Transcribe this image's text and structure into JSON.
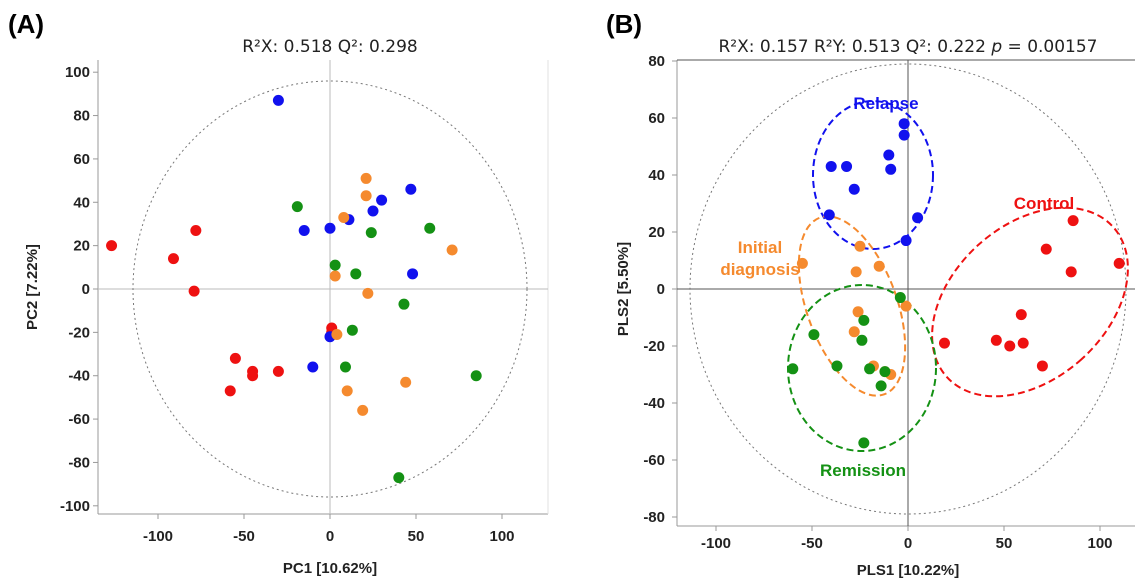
{
  "colors": {
    "red": "#ee1111",
    "blue": "#1111ee",
    "orange": "#f58a2e",
    "green": "#149114"
  },
  "chart_data": [
    {
      "panel": "(A)",
      "type": "scatter",
      "title": "R²X: 0.518 Q²: 0.298",
      "xlabel": "PC1 [10.62%]",
      "ylabel": "PC2 [7.22%]",
      "xlim": [
        -140,
        130
      ],
      "ylim": [
        -108,
        108
      ],
      "xticks": [
        -100,
        -50,
        0,
        50,
        100
      ],
      "yticks": [
        -100,
        -80,
        -60,
        -40,
        -20,
        0,
        20,
        40,
        60,
        80,
        100
      ],
      "series": [
        {
          "color": "red",
          "points": [
            [
              -127,
              20
            ],
            [
              -91,
              14
            ],
            [
              -78,
              27
            ],
            [
              -79,
              -1
            ],
            [
              -55,
              -32
            ],
            [
              -45,
              -38
            ],
            [
              -45,
              -40
            ],
            [
              -58,
              -47
            ],
            [
              -30,
              -38
            ],
            [
              1,
              -18
            ],
            [
              1,
              -20
            ]
          ]
        },
        {
          "color": "blue",
          "points": [
            [
              -30,
              87
            ],
            [
              -15,
              27
            ],
            [
              0,
              28
            ],
            [
              11,
              32
            ],
            [
              25,
              36
            ],
            [
              30,
              41
            ],
            [
              47,
              46
            ],
            [
              -10,
              -36
            ],
            [
              0,
              -22
            ],
            [
              48,
              7
            ]
          ]
        },
        {
          "color": "orange",
          "points": [
            [
              21,
              51
            ],
            [
              21,
              43
            ],
            [
              8,
              33
            ],
            [
              3,
              6
            ],
            [
              22,
              -2
            ],
            [
              4,
              -21
            ],
            [
              10,
              -47
            ],
            [
              19,
              -56
            ],
            [
              44,
              -43
            ],
            [
              71,
              18
            ]
          ]
        },
        {
          "color": "green",
          "points": [
            [
              -19,
              38
            ],
            [
              24,
              26
            ],
            [
              58,
              28
            ],
            [
              3,
              11
            ],
            [
              15,
              7
            ],
            [
              43,
              -7
            ],
            [
              13,
              -19
            ],
            [
              9,
              -36
            ],
            [
              85,
              -40
            ],
            [
              40,
              -87
            ]
          ]
        }
      ]
    },
    {
      "panel": "(B)",
      "type": "scatter",
      "title": "R²X: 0.157 R²Y: 0.513 Q²: 0.222 p = 0.00157",
      "title_parts": [
        "R²X: 0.157 R²Y: 0.513 Q²: 0.222 ",
        "p",
        " = 0.00157"
      ],
      "xlabel": "PLS1 [10.22%]",
      "ylabel": "PLS2 [5.50%]",
      "xlim": [
        -120,
        118
      ],
      "ylim": [
        -80,
        80
      ],
      "xticks": [
        -100,
        -50,
        0,
        50,
        100
      ],
      "yticks": [
        -80,
        -60,
        -40,
        -20,
        0,
        20,
        40,
        60,
        80
      ],
      "groups": [
        {
          "name": "Relapse",
          "color": "blue"
        },
        {
          "name": "Control",
          "color": "red"
        },
        {
          "name": "Initial diagnosis",
          "lines": [
            "Initial",
            "diagnosis"
          ],
          "color": "orange"
        },
        {
          "name": "Remission",
          "color": "green"
        }
      ],
      "series": [
        {
          "name": "Relapse",
          "color": "blue",
          "points": [
            [
              -2,
              58
            ],
            [
              -2,
              54
            ],
            [
              -10,
              47
            ],
            [
              -9,
              42
            ],
            [
              -40,
              43
            ],
            [
              -32,
              43
            ],
            [
              -28,
              35
            ],
            [
              -41,
              26
            ],
            [
              5,
              25
            ],
            [
              -1,
              17
            ]
          ]
        },
        {
          "name": "Control",
          "color": "red",
          "points": [
            [
              86,
              24
            ],
            [
              72,
              14
            ],
            [
              110,
              9
            ],
            [
              85,
              6
            ],
            [
              19,
              -19
            ],
            [
              59,
              -9
            ],
            [
              46,
              -18
            ],
            [
              53,
              -20
            ],
            [
              60,
              -19
            ],
            [
              70,
              -27
            ]
          ]
        },
        {
          "name": "Initial diagnosis",
          "color": "orange",
          "points": [
            [
              -25,
              15
            ],
            [
              -55,
              9
            ],
            [
              -27,
              6
            ],
            [
              -15,
              8
            ],
            [
              -1,
              -6
            ],
            [
              -26,
              -8
            ],
            [
              -28,
              -15
            ],
            [
              -18,
              -27
            ],
            [
              -12,
              -29
            ],
            [
              -9,
              -30
            ]
          ]
        },
        {
          "name": "Remission",
          "color": "green",
          "points": [
            [
              -23,
              -11
            ],
            [
              -4,
              -3
            ],
            [
              -24,
              -18
            ],
            [
              -49,
              -16
            ],
            [
              -37,
              -27
            ],
            [
              -20,
              -28
            ],
            [
              -14,
              -34
            ],
            [
              -12,
              -29
            ],
            [
              -60,
              -28
            ],
            [
              -23,
              -54
            ]
          ]
        }
      ]
    }
  ]
}
